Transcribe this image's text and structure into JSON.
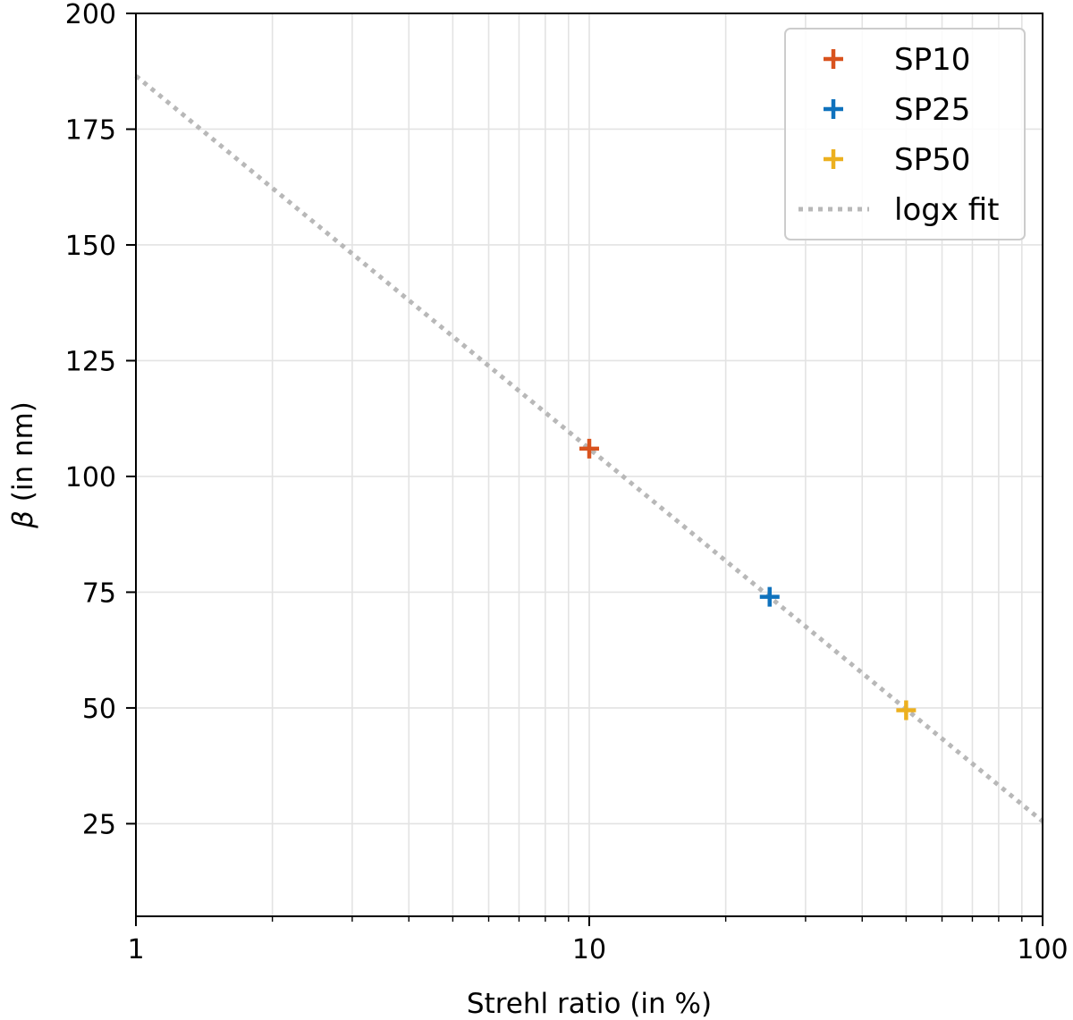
{
  "chart_data": {
    "type": "scatter",
    "title": "",
    "xlabel": "Strehl ratio (in %)",
    "ylabel_symbol": "β",
    "ylabel_unit": " (in nm)",
    "xscale": "log",
    "xlim": [
      1,
      100
    ],
    "ylim": [
      5,
      200
    ],
    "grid": true,
    "xticks": [
      {
        "value": 1,
        "label": "1"
      },
      {
        "value": 10,
        "label": "10"
      },
      {
        "value": 100,
        "label": "100"
      }
    ],
    "yticks": [
      {
        "value": 25,
        "label": "25"
      },
      {
        "value": 50,
        "label": "50"
      },
      {
        "value": 75,
        "label": "75"
      },
      {
        "value": 100,
        "label": "100"
      },
      {
        "value": 125,
        "label": "125"
      },
      {
        "value": 150,
        "label": "150"
      },
      {
        "value": 175,
        "label": "175"
      },
      {
        "value": 200,
        "label": "200"
      }
    ],
    "series": [
      {
        "name": "SP10",
        "marker": "plus",
        "color": "#d9531e",
        "points": [
          {
            "x": 10,
            "y": 106
          }
        ]
      },
      {
        "name": "SP25",
        "marker": "plus",
        "color": "#0f72bd",
        "points": [
          {
            "x": 25,
            "y": 74
          }
        ]
      },
      {
        "name": "SP50",
        "marker": "plus",
        "color": "#ecb01f",
        "points": [
          {
            "x": 50,
            "y": 49.5
          }
        ]
      }
    ],
    "fit": {
      "name": "logx fit",
      "style": "dotted",
      "color": "#b8b8b8",
      "model": "y = a + b*log10(x)",
      "a": 186.5,
      "b": -80.5
    },
    "legend": {
      "position": "top-right",
      "entries": [
        "SP10",
        "SP25",
        "SP50",
        "logx fit"
      ]
    }
  }
}
